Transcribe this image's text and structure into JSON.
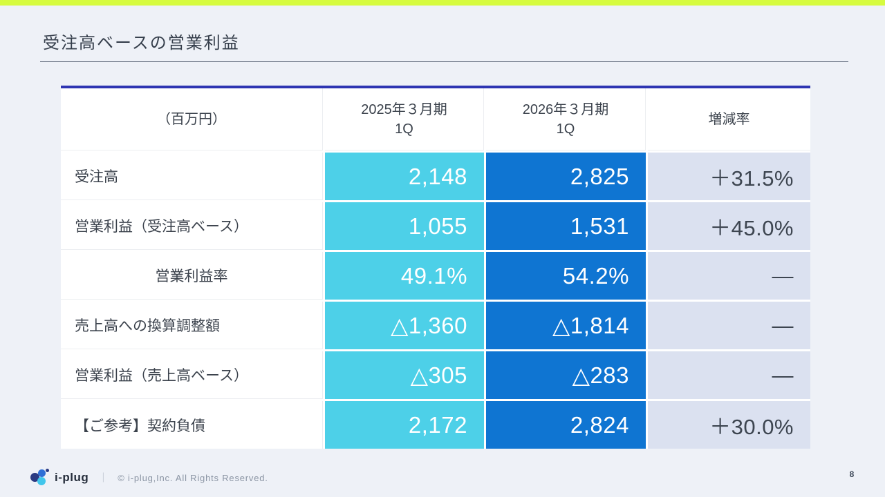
{
  "page": {
    "title": "受注高ベースの営業利益",
    "page_number": "8"
  },
  "table": {
    "header": {
      "unit_label": "（百万円）",
      "col_2025_line1": "2025年３月期",
      "col_2025_line2": "1Q",
      "col_2026_line1": "2026年３月期",
      "col_2026_line2": "1Q",
      "col_change": "増減率"
    },
    "rows": [
      {
        "label": "受注高",
        "fy2025_1q": "2,148",
        "fy2026_1q": "2,825",
        "change": "＋31.5%"
      },
      {
        "label": "営業利益（受注高ベース）",
        "fy2025_1q": "1,055",
        "fy2026_1q": "1,531",
        "change": "＋45.0%"
      },
      {
        "label": "営業利益率",
        "fy2025_1q": "49.1%",
        "fy2026_1q": "54.2%",
        "change": "—"
      },
      {
        "label": "売上高への換算調整額",
        "fy2025_1q": "△1,360",
        "fy2026_1q": "△1,814",
        "change": "—"
      },
      {
        "label": "営業利益（売上高ベース）",
        "fy2025_1q": "△305",
        "fy2026_1q": "△283",
        "change": "—"
      },
      {
        "label": "【ご参考】契約負債",
        "fy2025_1q": "2,172",
        "fy2026_1q": "2,824",
        "change": "＋30.0%"
      }
    ]
  },
  "footer": {
    "logo_text": "i-plug",
    "separator": "｜",
    "copyright": "© i-plug,Inc. All Rights Reserved."
  },
  "colors": {
    "accent_bar": "#d6fb3f",
    "table_top_border": "#2e35b2",
    "fy2025_column": "#4dd0e8",
    "fy2026_column": "#0f75d2",
    "change_column": "#dbe1f0",
    "page_background": "#eef1f7"
  }
}
